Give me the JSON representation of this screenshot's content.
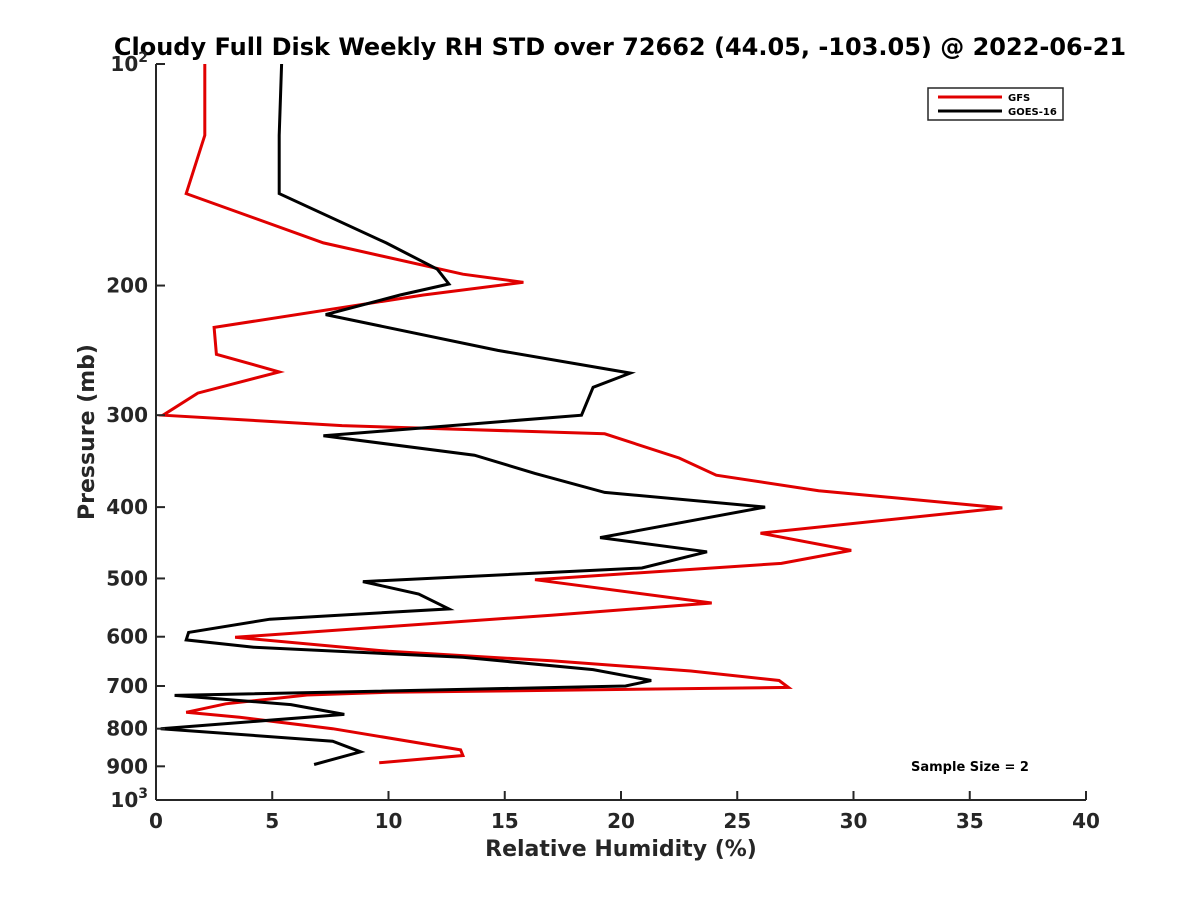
{
  "chart_data": {
    "type": "line",
    "title": "Cloudy Full Disk Weekly RH STD over 72662 (44.05, -103.05) @ 2022-06-21",
    "xlabel": "Relative Humidity (%)",
    "ylabel": "Pressure (mb)",
    "xlim": [
      0,
      40
    ],
    "ylim": [
      100,
      1000
    ],
    "y_scale": "log",
    "y_reversed": true,
    "x_ticks": [
      "0",
      "5",
      "10",
      "15",
      "20",
      "25",
      "30",
      "35",
      "40"
    ],
    "y_ticks": [
      {
        "value": 100,
        "base": "10",
        "exp": "2"
      },
      {
        "value": 200,
        "label": "200"
      },
      {
        "value": 300,
        "label": "300"
      },
      {
        "value": 400,
        "label": "400"
      },
      {
        "value": 500,
        "label": "500"
      },
      {
        "value": 600,
        "label": "600"
      },
      {
        "value": 700,
        "label": "700"
      },
      {
        "value": 800,
        "label": "800"
      },
      {
        "value": 900,
        "label": "900"
      },
      {
        "value": 1000,
        "base": "10",
        "exp": "3"
      }
    ],
    "grid": false,
    "legend_position": "top-right",
    "annotation": "Sample Size = 2",
    "series": [
      {
        "name": "GFS",
        "color": "#e00000",
        "points": [
          [
            2.1,
            100
          ],
          [
            2.1,
            125
          ],
          [
            1.3,
            150
          ],
          [
            7.2,
            175
          ],
          [
            13.2,
            193
          ],
          [
            15.8,
            198
          ],
          [
            11.5,
            206
          ],
          [
            2.5,
            228
          ],
          [
            2.6,
            248
          ],
          [
            5.3,
            262
          ],
          [
            1.8,
            280
          ],
          [
            0.3,
            300
          ],
          [
            8.0,
            310
          ],
          [
            19.3,
            318
          ],
          [
            22.5,
            343
          ],
          [
            24.1,
            362
          ],
          [
            28.5,
            380
          ],
          [
            36.4,
            401
          ],
          [
            26.0,
            434
          ],
          [
            29.9,
            458
          ],
          [
            26.9,
            477
          ],
          [
            16.3,
            502
          ],
          [
            23.9,
            540
          ],
          [
            17.0,
            561
          ],
          [
            3.4,
            601
          ],
          [
            10.0,
            628
          ],
          [
            17.0,
            647
          ],
          [
            23.0,
            668
          ],
          [
            26.8,
            688
          ],
          [
            27.2,
            703
          ],
          [
            10.0,
            714
          ],
          [
            6.5,
            720
          ],
          [
            3.0,
            740
          ],
          [
            1.3,
            760
          ],
          [
            3.6,
            772
          ],
          [
            7.6,
            800
          ],
          [
            13.1,
            855
          ],
          [
            13.2,
            870
          ],
          [
            9.6,
            890
          ]
        ]
      },
      {
        "name": "GOES-16",
        "color": "#000000",
        "points": [
          [
            5.4,
            100
          ],
          [
            5.3,
            125
          ],
          [
            5.3,
            150
          ],
          [
            9.9,
            175
          ],
          [
            12.1,
            190
          ],
          [
            12.6,
            199
          ],
          [
            10.5,
            206
          ],
          [
            7.3,
            219
          ],
          [
            14.7,
            245
          ],
          [
            20.4,
            263
          ],
          [
            18.8,
            275
          ],
          [
            18.3,
            300
          ],
          [
            7.2,
            320
          ],
          [
            13.7,
            340
          ],
          [
            16.3,
            360
          ],
          [
            19.3,
            382
          ],
          [
            26.2,
            400
          ],
          [
            19.1,
            440
          ],
          [
            23.7,
            460
          ],
          [
            20.9,
            484
          ],
          [
            8.9,
            505
          ],
          [
            11.3,
            525
          ],
          [
            12.6,
            550
          ],
          [
            4.9,
            568
          ],
          [
            1.4,
            592
          ],
          [
            1.3,
            606
          ],
          [
            4.2,
            620
          ],
          [
            13.2,
            640
          ],
          [
            18.8,
            665
          ],
          [
            21.3,
            688
          ],
          [
            20.2,
            700
          ],
          [
            0.8,
            721
          ],
          [
            5.8,
            742
          ],
          [
            8.1,
            765
          ],
          [
            0.2,
            800
          ],
          [
            7.6,
            832
          ],
          [
            8.8,
            860
          ],
          [
            6.8,
            895
          ]
        ]
      }
    ]
  }
}
